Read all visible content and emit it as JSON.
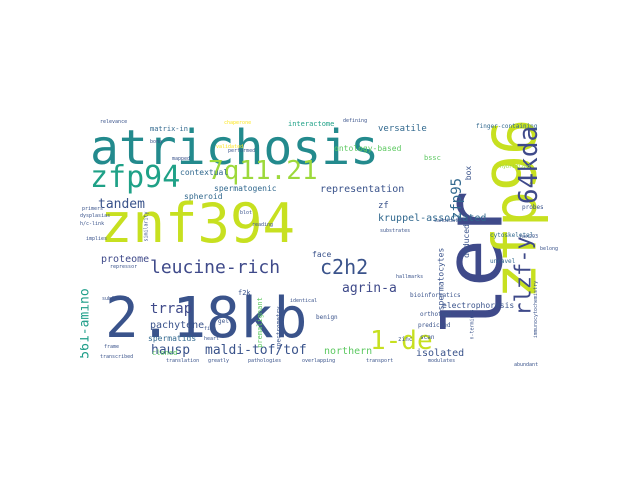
{
  "cloud": {
    "words": [
      {
        "text": "atrichosis",
        "size": 48,
        "color": "#238a8d"
      },
      {
        "text": "znf394",
        "size": 54,
        "color": "#c7e020"
      },
      {
        "text": "2.18kb",
        "size": 56,
        "color": "#3a538b"
      },
      {
        "text": "ler",
        "size": 80,
        "color": "#3f4a8a"
      },
      {
        "text": "zfp96",
        "size": 60,
        "color": "#c7e020"
      },
      {
        "text": "64kda",
        "size": 26,
        "color": "#3f4a8a"
      },
      {
        "text": "rlzf-y",
        "size": 22,
        "color": "#3f4a8a"
      },
      {
        "text": "1-de",
        "size": 26,
        "color": "#c7e020"
      },
      {
        "text": "zfp94",
        "size": 30,
        "color": "#1fa187"
      },
      {
        "text": "7q11.21",
        "size": 26,
        "color": "#9dd93b"
      },
      {
        "text": "leucine-rich",
        "size": 18,
        "color": "#3f4a8a"
      },
      {
        "text": "c2h2",
        "size": 20,
        "color": "#3a538b"
      },
      {
        "text": "zfp95",
        "size": 14,
        "color": "#31688e"
      },
      {
        "text": "tandem",
        "size": 13,
        "color": "#3a538b"
      },
      {
        "text": "trrap",
        "size": 14,
        "color": "#3f4a8a"
      },
      {
        "text": "agrin-a",
        "size": 13,
        "color": "#3f4a8a"
      },
      {
        "text": "hausp",
        "size": 13,
        "color": "#3a538b"
      },
      {
        "text": "maldi-tof/tof",
        "size": 13,
        "color": "#3a538b"
      },
      {
        "text": "561-amino",
        "size": 13,
        "color": "#1f9e89"
      },
      {
        "text": "proteome",
        "size": 10,
        "color": "#3f4a8a"
      },
      {
        "text": "pachytene",
        "size": 10,
        "color": "#3a538b"
      },
      {
        "text": "kruppel-associated",
        "size": 10,
        "color": "#31688e"
      },
      {
        "text": "representation",
        "size": 10,
        "color": "#3a538b"
      },
      {
        "text": "isolated",
        "size": 10,
        "color": "#3a538b"
      },
      {
        "text": "northern",
        "size": 10,
        "color": "#5ec962"
      },
      {
        "text": "spermatids",
        "size": 8,
        "color": "#31688e"
      },
      {
        "text": "spermatogenic",
        "size": 8,
        "color": "#31688e"
      },
      {
        "text": "contextual",
        "size": 8,
        "color": "#31688e"
      },
      {
        "text": "spheroid",
        "size": 8,
        "color": "#31688e"
      },
      {
        "text": "versatile",
        "size": 9,
        "color": "#31688e"
      },
      {
        "text": "ontology-based",
        "size": 8,
        "color": "#5ec962"
      },
      {
        "text": "interactome",
        "size": 7,
        "color": "#1fa187"
      },
      {
        "text": "matrix-in",
        "size": 7,
        "color": "#31688e"
      },
      {
        "text": "spermatocytes",
        "size": 8,
        "color": "#3a538b"
      },
      {
        "text": "box",
        "size": 8,
        "color": "#3a538b"
      },
      {
        "text": "zf",
        "size": 9,
        "color": "#3a538b"
      },
      {
        "text": "electrophoresis",
        "size": 8,
        "color": "#3a538b"
      },
      {
        "text": "deduced",
        "size": 8,
        "color": "#3a538b"
      },
      {
        "text": "perspective",
        "size": 8,
        "color": "#1fa187"
      },
      {
        "text": "finger-containing",
        "size": 6,
        "color": "#31688e"
      },
      {
        "text": "cytoskeletal",
        "size": 6,
        "color": "#31688e"
      },
      {
        "text": "unravel",
        "size": 6,
        "color": "#31688e"
      },
      {
        "text": "orthotopic",
        "size": 6,
        "color": "#3a538b"
      },
      {
        "text": "predicted",
        "size": 6,
        "color": "#3a538b"
      },
      {
        "text": "bioinformatics",
        "size": 6,
        "color": "#3a538b"
      },
      {
        "text": "benign",
        "size": 6,
        "color": "#3a538b"
      },
      {
        "text": "zinc",
        "size": 6,
        "color": "#3a538b"
      },
      {
        "text": "scan",
        "size": 6,
        "color": "#3a538b"
      },
      {
        "text": "face",
        "size": 8,
        "color": "#3a538b"
      },
      {
        "text": "f2k",
        "size": 7,
        "color": "#3a538b"
      },
      {
        "text": "gel",
        "size": 6,
        "color": "#3a538b"
      },
      {
        "text": "cloned",
        "size": 7,
        "color": "#5ec962"
      },
      {
        "text": "premalignant",
        "size": 7,
        "color": "#5ec962"
      },
      {
        "text": "spectrometry",
        "size": 6,
        "color": "#3a538b"
      },
      {
        "text": "probes",
        "size": 6,
        "color": "#3a538b"
      },
      {
        "text": "hek293",
        "size": 5,
        "color": "#3a538b"
      },
      {
        "text": "candidate",
        "size": 5,
        "color": "#3a538b"
      },
      {
        "text": "immunocytochemistry",
        "size": 5,
        "color": "#3a538b"
      },
      {
        "text": "subfamily",
        "size": 5,
        "color": "#3a538b"
      },
      {
        "text": "repressor",
        "size": 5,
        "color": "#3a538b"
      },
      {
        "text": "similarity",
        "size": 5,
        "color": "#3a538b"
      },
      {
        "text": "dysplasias",
        "size": 5,
        "color": "#3a538b"
      },
      {
        "text": "h/c-link",
        "size": 5,
        "color": "#3a538b"
      },
      {
        "text": "primers",
        "size": 5,
        "color": "#3a538b"
      },
      {
        "text": "implies",
        "size": 5,
        "color": "#3a538b"
      },
      {
        "text": "relevance",
        "size": 5,
        "color": "#3a538b"
      },
      {
        "text": "chaperone",
        "size": 5,
        "color": "#fde725"
      },
      {
        "text": "defining",
        "size": 5,
        "color": "#3a538b"
      },
      {
        "text": "hallmarks",
        "size": 5,
        "color": "#3a538b"
      },
      {
        "text": "transcribed",
        "size": 5,
        "color": "#3a538b"
      },
      {
        "text": "frame",
        "size": 5,
        "color": "#3a538b"
      },
      {
        "text": "translation",
        "size": 5,
        "color": "#3a538b"
      },
      {
        "text": "pathologies",
        "size": 5,
        "color": "#3a538b"
      },
      {
        "text": "overlapping",
        "size": 5,
        "color": "#3a538b"
      },
      {
        "text": "transport",
        "size": 5,
        "color": "#3a538b"
      },
      {
        "text": "hybridized",
        "size": 5,
        "color": "#9dd93b"
      },
      {
        "text": "heart",
        "size": 5,
        "color": "#3a538b"
      },
      {
        "text": "fide",
        "size": 5,
        "color": "#3a538b"
      },
      {
        "text": "blot",
        "size": 5,
        "color": "#3a538b"
      },
      {
        "text": "reading",
        "size": 5,
        "color": "#3a538b"
      },
      {
        "text": "substrates",
        "size": 5,
        "color": "#3a538b"
      },
      {
        "text": "belong",
        "size": 5,
        "color": "#3a538b"
      },
      {
        "text": "abundant",
        "size": 5,
        "color": "#3a538b"
      },
      {
        "text": "bona",
        "size": 5,
        "color": "#3a538b"
      },
      {
        "text": "n-terminus",
        "size": 5,
        "color": "#3a538b"
      },
      {
        "text": "modulates",
        "size": 5,
        "color": "#3a538b"
      },
      {
        "text": "identical",
        "size": 5,
        "color": "#3a538b"
      },
      {
        "text": "validated",
        "size": 5,
        "color": "#fde725"
      },
      {
        "text": "performed",
        "size": 5,
        "color": "#3a538b"
      },
      {
        "text": "bssc",
        "size": 7,
        "color": "#5ec962"
      },
      {
        "text": "mapped",
        "size": 5,
        "color": "#3a538b"
      },
      {
        "text": "greatly",
        "size": 5,
        "color": "#3a538b"
      }
    ]
  }
}
